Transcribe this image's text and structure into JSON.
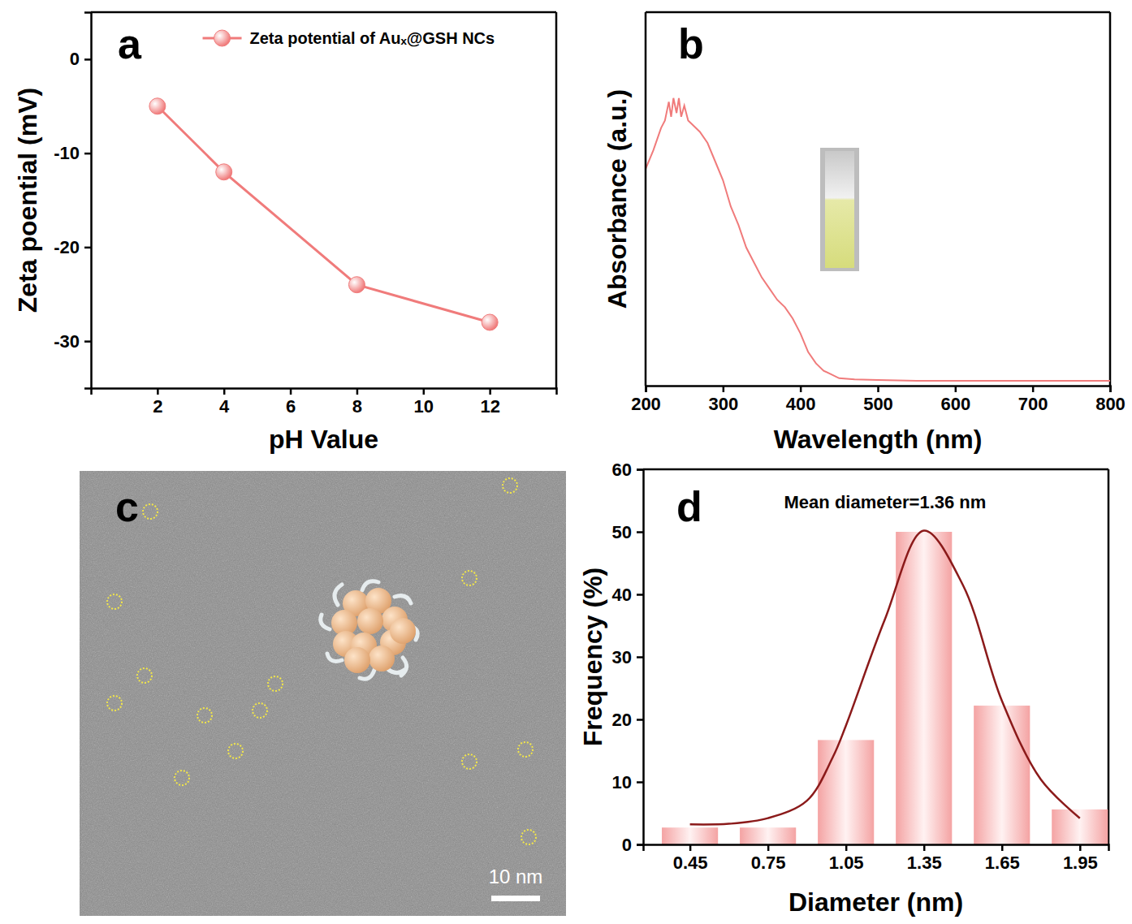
{
  "chart_data": [
    {
      "type": "line",
      "panel": "a",
      "x_label": "pH Value",
      "y_label": "Zeta poential (mV)",
      "x": [
        2,
        4,
        8,
        12
      ],
      "series": [
        {
          "name": "Zeta potential of Auₓ@GSH NCs",
          "color": "#f07b7b",
          "values": [
            -5,
            -12,
            -24,
            -28
          ],
          "marker": "circle"
        }
      ],
      "xlim": [
        0,
        14
      ],
      "xticks": [
        2,
        4,
        6,
        8,
        10,
        12
      ],
      "ylim": [
        -35,
        5
      ],
      "yticks": [
        0,
        -10,
        -20,
        -30
      ],
      "legend": "upper right"
    },
    {
      "type": "line",
      "panel": "b",
      "x_label": "Wavelength (nm)",
      "y_label": "Absorbance (a.u.)",
      "x": [
        200,
        210,
        220,
        225,
        230,
        233,
        236,
        240,
        243,
        246,
        250,
        255,
        260,
        270,
        280,
        290,
        300,
        310,
        320,
        330,
        340,
        350,
        360,
        370,
        380,
        390,
        400,
        410,
        420,
        430,
        440,
        450,
        470,
        500,
        550,
        600,
        650,
        700,
        750,
        800
      ],
      "series": [
        {
          "color": "#f07b7b",
          "values": [
            0.58,
            0.63,
            0.69,
            0.71,
            0.76,
            0.72,
            0.77,
            0.73,
            0.77,
            0.72,
            0.75,
            0.71,
            0.7,
            0.68,
            0.65,
            0.6,
            0.55,
            0.48,
            0.43,
            0.37,
            0.33,
            0.29,
            0.26,
            0.23,
            0.21,
            0.18,
            0.14,
            0.09,
            0.06,
            0.04,
            0.03,
            0.02,
            0.017,
            0.015,
            0.013,
            0.013,
            0.013,
            0.013,
            0.013,
            0.013
          ]
        }
      ],
      "xlim": [
        200,
        800
      ],
      "xticks": [
        200,
        300,
        400,
        500,
        600,
        700,
        800
      ],
      "ylim": [
        0,
        1
      ],
      "tick_labels": "x"
    },
    {
      "type": "image",
      "panel": "c",
      "scale_bar": "10 nm"
    },
    {
      "type": "bar",
      "panel": "d",
      "x_label": "Diameter (nm)",
      "y_label": "Frequency (%)",
      "annotations": [
        "Mean diameter=1.36 nm"
      ],
      "x": [
        0.45,
        0.75,
        1.05,
        1.35,
        1.65,
        1.95
      ],
      "series": [
        {
          "type": "bar",
          "color": "#f4a3a3",
          "values": [
            2.7,
            2.7,
            16.7,
            50,
            22.2,
            5.6
          ]
        },
        {
          "type": "line",
          "color": "#8b1a1a",
          "x": [
            0.45,
            0.6,
            0.75,
            0.9,
            1.0,
            1.05,
            1.2,
            1.35,
            1.5,
            1.65,
            1.8,
            1.95
          ],
          "values": [
            3.2,
            3.3,
            4.2,
            7,
            14,
            19,
            36,
            50.2,
            41.5,
            23,
            10.4,
            4.2
          ]
        }
      ],
      "xlim": [
        0.27,
        2.06
      ],
      "xticks": [
        0.45,
        0.75,
        1.05,
        1.35,
        1.65,
        1.95
      ],
      "ylim": [
        0,
        60
      ],
      "yticks": [
        0,
        10,
        20,
        30,
        40,
        50,
        60
      ]
    }
  ]
}
